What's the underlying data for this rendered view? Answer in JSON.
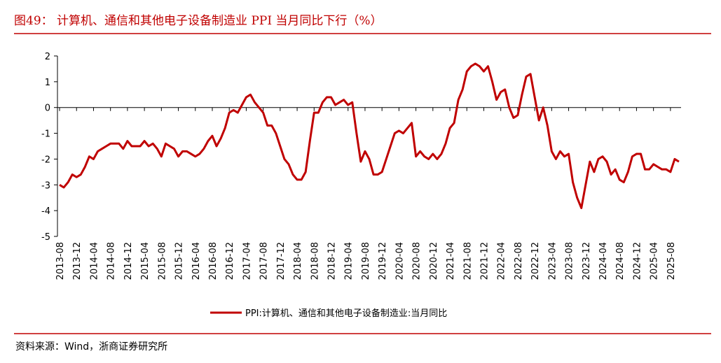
{
  "chart_data": {
    "type": "line",
    "title": "图49：  计算机、通信和其他电子设备制造业 PPI 当月同比下行（%）",
    "source": "资料来源：Wind，浙商证券研究所",
    "categories": [
      "2013-08",
      null,
      null,
      null,
      "2013-12",
      null,
      null,
      null,
      "2014-04",
      null,
      null,
      null,
      "2014-08",
      null,
      null,
      null,
      "2014-12",
      null,
      null,
      null,
      "2015-04",
      null,
      null,
      null,
      "2015-08",
      null,
      null,
      null,
      "2015-12",
      null,
      null,
      null,
      "2016-04",
      null,
      null,
      null,
      "2016-08",
      null,
      null,
      null,
      "2016-12",
      null,
      null,
      null,
      "2017-04",
      null,
      null,
      null,
      "2017-08",
      null,
      null,
      null,
      "2017-12",
      null,
      null,
      null,
      "2018-04",
      null,
      null,
      null,
      "2018-08",
      null,
      null,
      null,
      "2018-12",
      null,
      null,
      null,
      "2019-04",
      null,
      null,
      null,
      "2019-08",
      null,
      null,
      null,
      "2019-12",
      null,
      null,
      null,
      "2020-04",
      null,
      null,
      null,
      "2020-08",
      null,
      null,
      null,
      "2020-12",
      null,
      null,
      null,
      "2021-04",
      null,
      null,
      null,
      "2021-08",
      null,
      null,
      null,
      "2021-12",
      null,
      null,
      null,
      "2022-04",
      null,
      null,
      null,
      "2022-08",
      null,
      null,
      null,
      "2022-12",
      null,
      null,
      null,
      "2023-04",
      null,
      null,
      null,
      "2023-08",
      null,
      null,
      null,
      "2023-12",
      null,
      null,
      null,
      "2024-04",
      null,
      null,
      null,
      "2024-08",
      null,
      null,
      null,
      "2024-12",
      null,
      null,
      null,
      "2025-04",
      null,
      null,
      null,
      "2025-08",
      null,
      null
    ],
    "series": [
      {
        "name": "PPI:计算机、通信和其他电子设备制造业:当月同比",
        "color": "#c00000",
        "values": [
          -3.0,
          -3.1,
          -2.9,
          -2.6,
          -2.7,
          -2.6,
          -2.3,
          -1.9,
          -2.0,
          -1.7,
          -1.6,
          -1.5,
          -1.4,
          -1.4,
          -1.4,
          -1.6,
          -1.3,
          -1.5,
          -1.5,
          -1.5,
          -1.3,
          -1.5,
          -1.4,
          -1.6,
          -1.9,
          -1.4,
          -1.5,
          -1.6,
          -1.9,
          -1.7,
          -1.7,
          -1.8,
          -1.9,
          -1.8,
          -1.6,
          -1.3,
          -1.1,
          -1.5,
          -1.2,
          -0.8,
          -0.2,
          -0.1,
          -0.2,
          0.1,
          0.4,
          0.5,
          0.2,
          0.0,
          -0.2,
          -0.7,
          -0.7,
          -1.0,
          -1.5,
          -2.0,
          -2.2,
          -2.6,
          -2.8,
          -2.8,
          -2.5,
          -1.3,
          -0.2,
          -0.2,
          0.2,
          0.4,
          0.4,
          0.1,
          0.2,
          0.3,
          0.1,
          0.2,
          -1.0,
          -2.1,
          -1.7,
          -2.0,
          -2.6,
          -2.6,
          -2.5,
          -2.0,
          -1.5,
          -1.0,
          -0.9,
          -1.0,
          -0.8,
          -0.6,
          -1.9,
          -1.7,
          -1.9,
          -2.0,
          -1.8,
          -2.0,
          -1.8,
          -1.4,
          -0.8,
          -0.6,
          0.3,
          0.7,
          1.4,
          1.6,
          1.7,
          1.6,
          1.4,
          1.6,
          1.0,
          0.3,
          0.6,
          0.7,
          0.0,
          -0.4,
          -0.3,
          0.5,
          1.2,
          1.3,
          0.4,
          -0.5,
          0.0,
          -0.7,
          -1.7,
          -2.0,
          -1.7,
          -1.9,
          -1.8,
          -2.9,
          -3.5,
          -3.9,
          -3.0,
          -2.1,
          -2.5,
          -2.0,
          -1.9,
          -2.1,
          -2.6,
          -2.4,
          -2.8,
          -2.9,
          -2.5,
          -1.9,
          -1.8,
          -1.8,
          -2.4,
          -2.4,
          -2.2,
          -2.3,
          -2.4,
          -2.4,
          -2.5,
          -2.0,
          -2.1
        ]
      }
    ],
    "ylim": [
      -5,
      2
    ],
    "yticks": [
      -5,
      -4,
      -3,
      -2,
      -1,
      0,
      1,
      2
    ],
    "grid": false
  }
}
